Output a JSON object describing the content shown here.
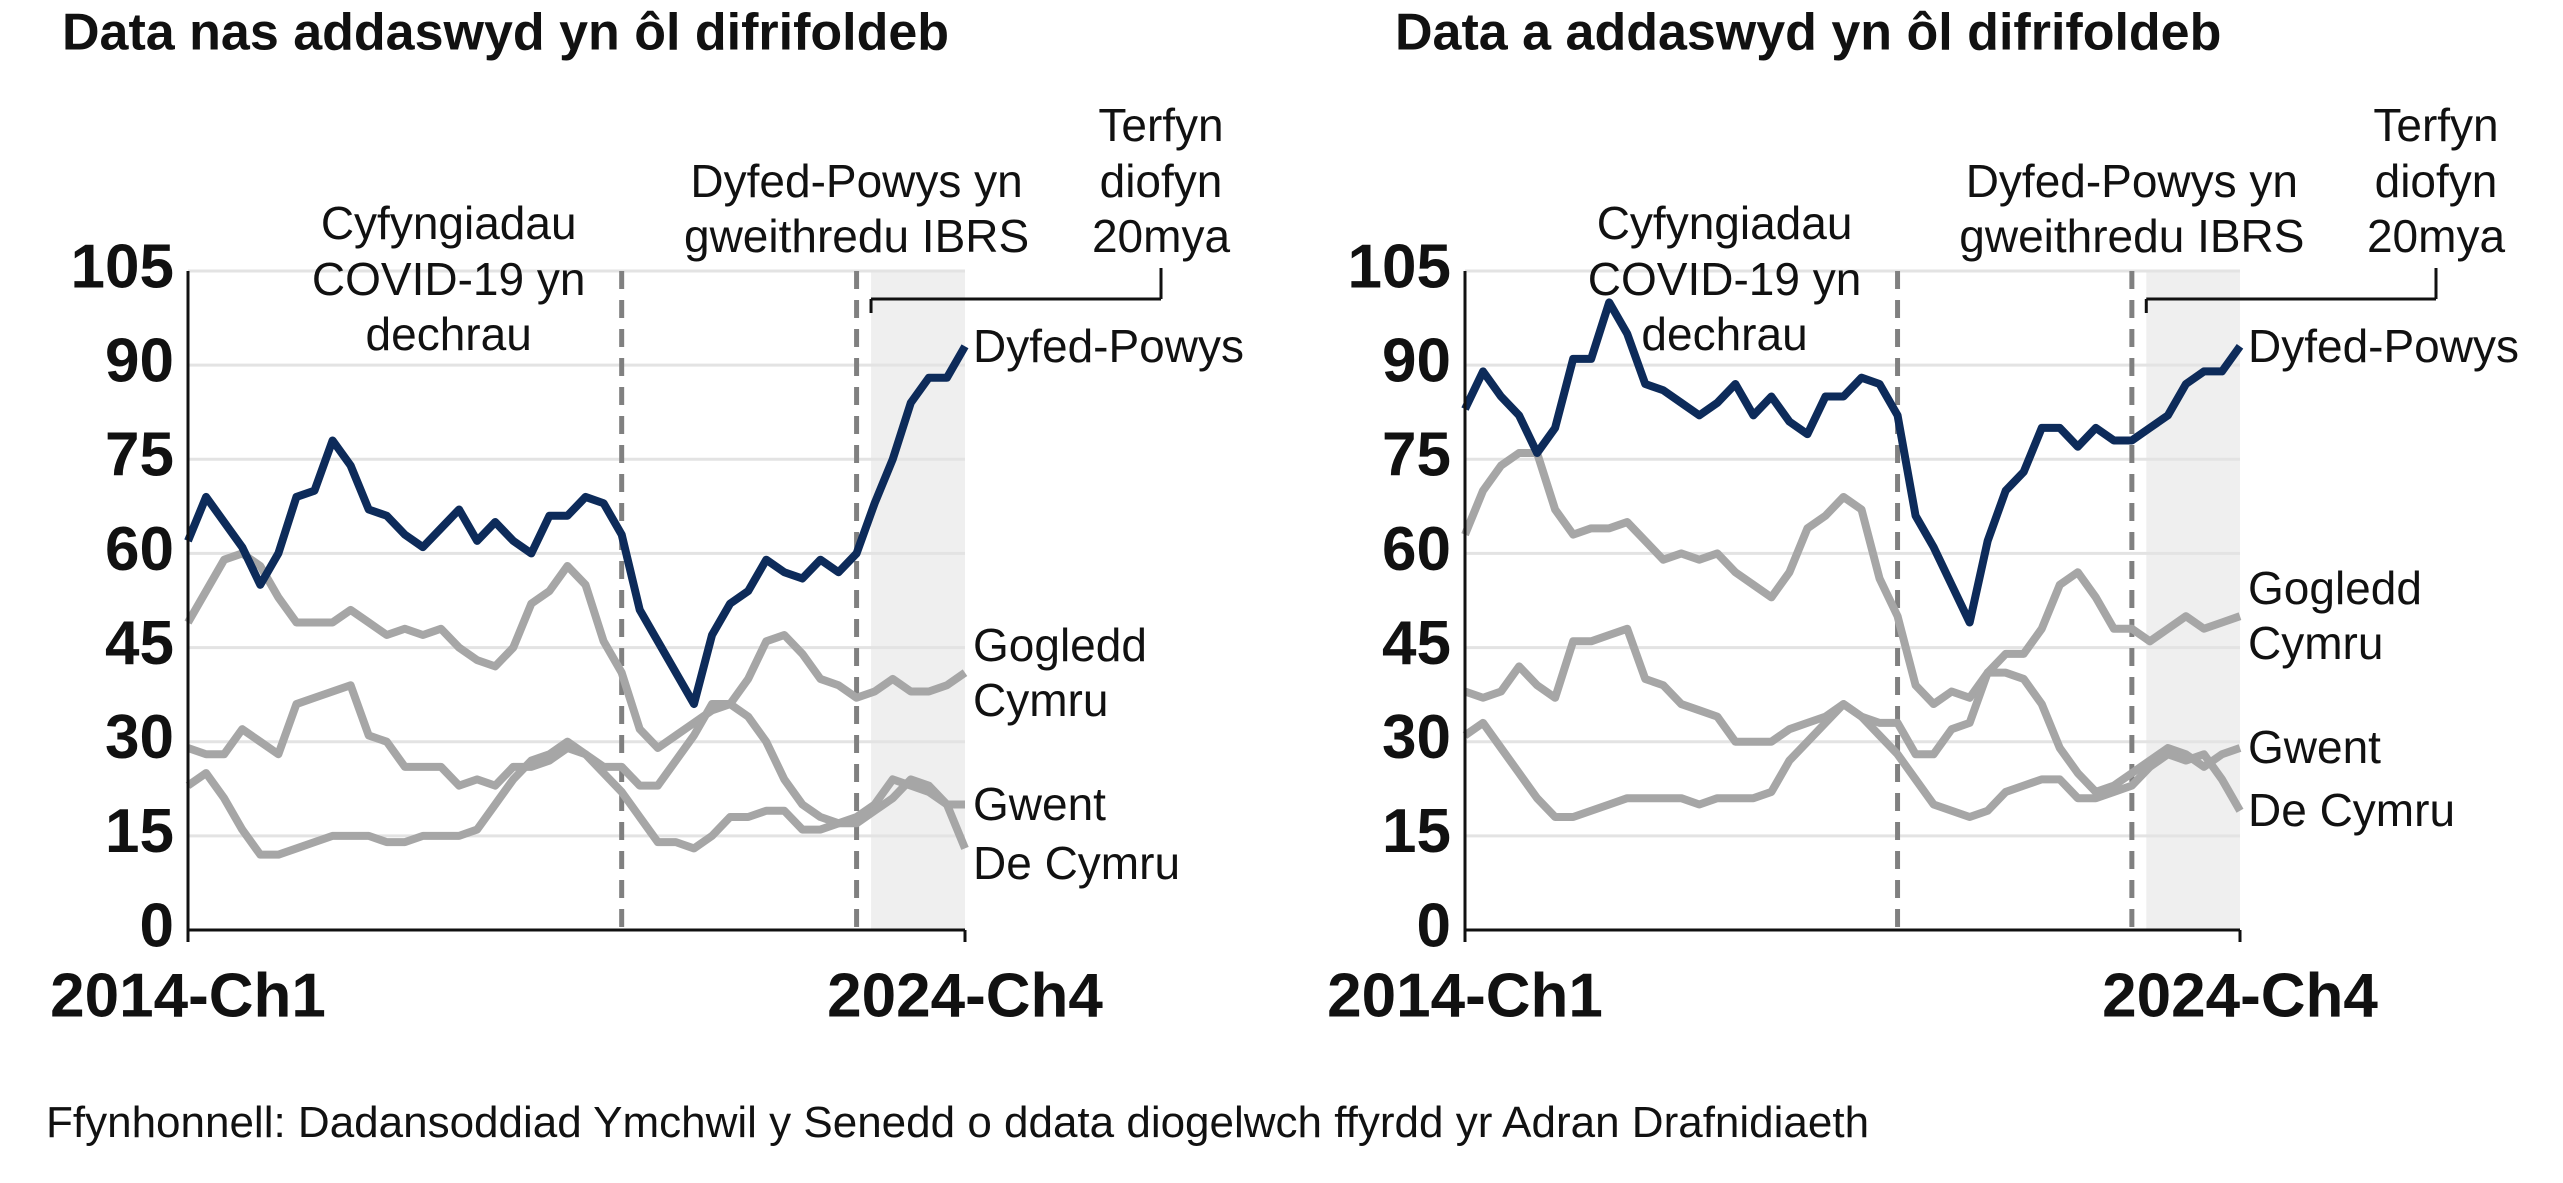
{
  "chart_data": [
    {
      "type": "line",
      "title": "Data nas addaswyd yn ôl difrifoldeb",
      "categories": [
        "2014-Ch1",
        null,
        null,
        null,
        null,
        null,
        null,
        null,
        null,
        null,
        null,
        null,
        null,
        null,
        null,
        null,
        null,
        null,
        null,
        null,
        null,
        null,
        null,
        null,
        null,
        null,
        null,
        null,
        null,
        null,
        null,
        null,
        null,
        null,
        null,
        null,
        null,
        null,
        null,
        null,
        null,
        null,
        null,
        "2024-Ch4"
      ],
      "ylim": [
        0,
        105
      ],
      "yticks": [
        0,
        15,
        30,
        45,
        60,
        75,
        90,
        105
      ],
      "grid": true,
      "annotations": [
        "Cyfyngiadau COVID-19 yn dechrau",
        "Dyfed-Powys yn gweithredu IBRS",
        "Terfyn diofyn 20mya"
      ],
      "series": [
        {
          "name": "Dyfed-Powys",
          "color": "#0d2b5a",
          "values": [
            62,
            69,
            65,
            61,
            55,
            60,
            69,
            70,
            78,
            74,
            67,
            66,
            63,
            61,
            64,
            67,
            62,
            65,
            62,
            60,
            66,
            66,
            69,
            68,
            63,
            51,
            46,
            41,
            36,
            47,
            52,
            54,
            59,
            57,
            56,
            59,
            57,
            60,
            68,
            75,
            84,
            88,
            88,
            93
          ]
        },
        {
          "name": "Gogledd Cymru",
          "color": "#a6a6a6",
          "values": [
            49,
            54,
            59,
            60,
            58,
            53,
            49,
            49,
            49,
            51,
            49,
            47,
            48,
            47,
            48,
            45,
            43,
            42,
            45,
            52,
            54,
            58,
            55,
            46,
            41,
            32,
            29,
            31,
            33,
            35,
            36,
            40,
            46,
            47,
            44,
            40,
            39,
            37,
            38,
            40,
            38,
            38,
            39,
            41
          ]
        },
        {
          "name": "Gwent",
          "color": "#a6a6a6",
          "values": [
            29,
            28,
            28,
            32,
            30,
            28,
            36,
            37,
            38,
            39,
            31,
            30,
            26,
            26,
            26,
            23,
            24,
            23,
            26,
            26,
            27,
            29,
            28,
            26,
            26,
            23,
            23,
            27,
            31,
            36,
            36,
            34,
            30,
            24,
            20,
            18,
            17,
            18,
            20,
            24,
            23,
            22,
            20,
            20
          ]
        },
        {
          "name": "De Cymru",
          "color": "#a6a6a6",
          "values": [
            23,
            25,
            21,
            16,
            12,
            12,
            13,
            14,
            15,
            15,
            15,
            14,
            14,
            15,
            15,
            15,
            16,
            20,
            24,
            27,
            28,
            30,
            28,
            25,
            22,
            18,
            14,
            14,
            13,
            15,
            18,
            18,
            19,
            19,
            16,
            16,
            17,
            17,
            19,
            21,
            24,
            23,
            20,
            13
          ]
        }
      ]
    },
    {
      "type": "line",
      "title": "Data a addaswyd yn ôl difrifoldeb",
      "categories": [
        "2014-Ch1",
        null,
        null,
        null,
        null,
        null,
        null,
        null,
        null,
        null,
        null,
        null,
        null,
        null,
        null,
        null,
        null,
        null,
        null,
        null,
        null,
        null,
        null,
        null,
        null,
        null,
        null,
        null,
        null,
        null,
        null,
        null,
        null,
        null,
        null,
        null,
        null,
        null,
        null,
        null,
        null,
        null,
        null,
        "2024-Ch4"
      ],
      "ylim": [
        0,
        105
      ],
      "yticks": [
        0,
        15,
        30,
        45,
        60,
        75,
        90,
        105
      ],
      "grid": true,
      "annotations": [
        "Cyfyngiadau COVID-19 yn dechrau",
        "Dyfed-Powys yn gweithredu IBRS",
        "Terfyn diofyn 20mya"
      ],
      "series": [
        {
          "name": "Dyfed-Powys",
          "color": "#0d2b5a",
          "values": [
            83,
            89,
            85,
            82,
            76,
            80,
            91,
            91,
            100,
            95,
            87,
            86,
            84,
            82,
            84,
            87,
            82,
            85,
            81,
            79,
            85,
            85,
            88,
            87,
            82,
            66,
            61,
            55,
            49,
            62,
            70,
            73,
            80,
            80,
            77,
            80,
            78,
            78,
            80,
            82,
            87,
            89,
            89,
            93
          ]
        },
        {
          "name": "Gogledd Cymru",
          "color": "#a6a6a6",
          "values": [
            63,
            70,
            74,
            76,
            76,
            67,
            63,
            64,
            64,
            65,
            62,
            59,
            60,
            59,
            60,
            57,
            55,
            53,
            57,
            64,
            66,
            69,
            67,
            56,
            50,
            39,
            36,
            38,
            37,
            41,
            44,
            44,
            48,
            55,
            57,
            53,
            48,
            48,
            46,
            48,
            50,
            48,
            49,
            50
          ]
        },
        {
          "name": "Gwent",
          "color": "#a6a6a6",
          "values": [
            38,
            37,
            38,
            42,
            39,
            37,
            46,
            46,
            47,
            48,
            40,
            39,
            36,
            35,
            34,
            30,
            30,
            30,
            32,
            33,
            34,
            36,
            34,
            33,
            33,
            28,
            28,
            32,
            33,
            41,
            41,
            40,
            36,
            29,
            25,
            22,
            23,
            25,
            27,
            29,
            28,
            26,
            28,
            29
          ]
        },
        {
          "name": "De Cymru",
          "color": "#a6a6a6",
          "values": [
            31,
            33,
            29,
            25,
            21,
            18,
            18,
            19,
            20,
            21,
            21,
            21,
            21,
            20,
            21,
            21,
            21,
            22,
            27,
            30,
            33,
            36,
            34,
            31,
            28,
            24,
            20,
            19,
            18,
            19,
            22,
            23,
            24,
            24,
            21,
            21,
            22,
            23,
            26,
            28,
            27,
            28,
            24,
            19
          ]
        }
      ]
    }
  ],
  "source": "Ffynhonnell: Dadansoddiad Ymchwil y Senedd o ddata diogelwch ffyrdd yr Adran Drafnidiaeth"
}
